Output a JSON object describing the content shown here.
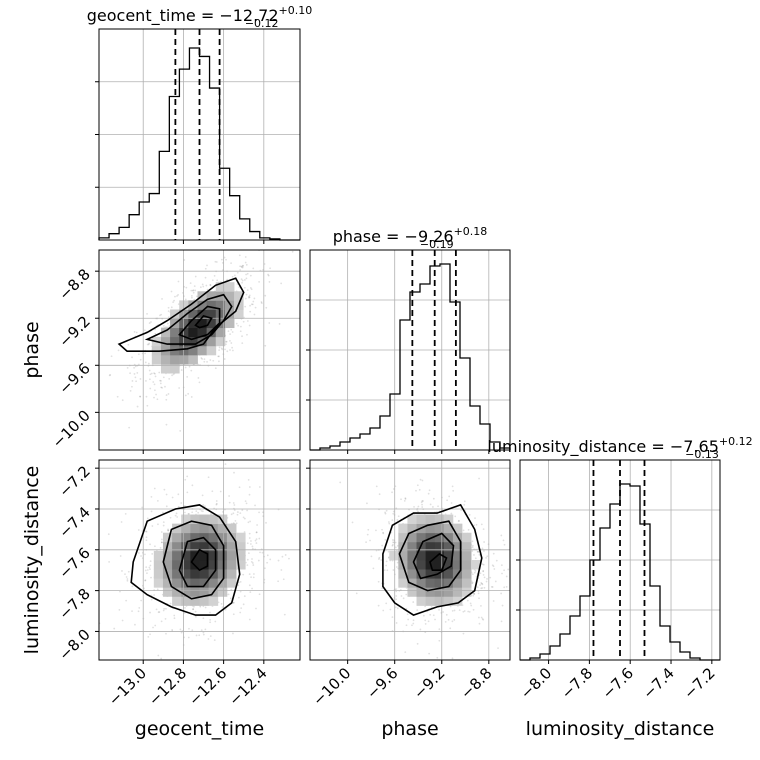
{
  "chart_data": {
    "type": "corner",
    "grid": true,
    "parameters": [
      {
        "name": "geocent_time",
        "ticks": [
          -13.0,
          -12.8,
          -12.6,
          -12.4
        ],
        "tick_labels": [
          "−13.0",
          "−12.8",
          "−12.6",
          "−12.4"
        ],
        "range": [
          -13.22,
          -12.22
        ],
        "title": {
          "main": "geocent_time = −12.72",
          "plus": "+0.10",
          "minus": "−0.12"
        },
        "quantiles": [
          -12.84,
          -12.72,
          -12.62
        ],
        "histogram": {
          "bin_edges": [
            -13.22,
            -13.17,
            -13.12,
            -13.07,
            -13.02,
            -12.97,
            -12.92,
            -12.87,
            -12.82,
            -12.77,
            -12.72,
            -12.67,
            -12.62,
            -12.57,
            -12.52,
            -12.47,
            -12.42,
            -12.37,
            -12.32,
            -12.27,
            -12.22
          ],
          "counts": [
            0.01,
            0.03,
            0.06,
            0.12,
            0.18,
            0.22,
            0.42,
            0.68,
            0.81,
            0.91,
            0.87,
            0.72,
            0.34,
            0.21,
            0.1,
            0.04,
            0.01,
            0.005,
            0,
            0
          ]
        }
      },
      {
        "name": "phase",
        "ticks": [
          -10.0,
          -9.6,
          -9.2,
          -8.8
        ],
        "tick_labels": [
          "−10.0",
          "−9.6",
          "−9.2",
          "−8.8"
        ],
        "range": [
          -10.32,
          -8.62
        ],
        "title": {
          "main": "phase = −9.26",
          "plus": "+0.18",
          "minus": "−0.19"
        },
        "quantiles": [
          -9.45,
          -9.26,
          -9.08
        ],
        "histogram": {
          "bin_edges": [
            -10.32,
            -10.235,
            -10.15,
            -10.065,
            -9.98,
            -9.895,
            -9.81,
            -9.725,
            -9.64,
            -9.555,
            -9.47,
            -9.385,
            -9.3,
            -9.215,
            -9.13,
            -9.045,
            -8.96,
            -8.875,
            -8.79,
            -8.705,
            -8.62
          ],
          "counts": [
            0,
            0.01,
            0.02,
            0.04,
            0.06,
            0.08,
            0.11,
            0.17,
            0.28,
            0.65,
            0.79,
            0.83,
            0.92,
            0.93,
            0.74,
            0.46,
            0.22,
            0.13,
            0.04,
            0.01
          ]
        }
      },
      {
        "name": "luminosity_distance",
        "ticks": [
          -8.0,
          -7.8,
          -7.6,
          -7.4,
          -7.2
        ],
        "tick_labels": [
          "−8.0",
          "−7.8",
          "−7.6",
          "−7.4",
          "−7.2"
        ],
        "range": [
          -8.14,
          -7.16
        ],
        "title": {
          "main": "luminosity_distance = −7.65",
          "plus": "+0.12",
          "minus": "−0.13"
        },
        "quantiles": [
          -7.78,
          -7.65,
          -7.53
        ],
        "histogram": {
          "bin_edges": [
            -8.14,
            -8.091,
            -8.042,
            -7.993,
            -7.944,
            -7.895,
            -7.846,
            -7.797,
            -7.748,
            -7.699,
            -7.65,
            -7.601,
            -7.552,
            -7.503,
            -7.454,
            -7.405,
            -7.356,
            -7.307,
            -7.258,
            -7.209,
            -7.16
          ],
          "counts": [
            0,
            0.01,
            0.03,
            0.07,
            0.13,
            0.22,
            0.32,
            0.5,
            0.66,
            0.78,
            0.88,
            0.87,
            0.68,
            0.37,
            0.17,
            0.09,
            0.04,
            0.01,
            0,
            0
          ]
        }
      }
    ],
    "pairs": [
      {
        "x": "geocent_time",
        "y": "phase",
        "mean": [
          -12.73,
          -9.28
        ],
        "sd": [
          0.12,
          0.2
        ],
        "corr": 0.62,
        "contours": [
          [
            [
              -13.12,
              -9.42
            ],
            [
              -12.98,
              -9.32
            ],
            [
              -12.88,
              -9.22
            ],
            [
              -12.76,
              -9.08
            ],
            [
              -12.64,
              -8.92
            ],
            [
              -12.54,
              -8.86
            ],
            [
              -12.5,
              -8.98
            ],
            [
              -12.54,
              -9.14
            ],
            [
              -12.64,
              -9.28
            ],
            [
              -12.7,
              -9.42
            ],
            [
              -12.78,
              -9.46
            ],
            [
              -12.92,
              -9.48
            ],
            [
              -13.08,
              -9.48
            ]
          ],
          [
            [
              -12.98,
              -9.38
            ],
            [
              -12.88,
              -9.3
            ],
            [
              -12.78,
              -9.16
            ],
            [
              -12.68,
              -9.04
            ],
            [
              -12.6,
              -9.0
            ],
            [
              -12.56,
              -9.1
            ],
            [
              -12.6,
              -9.22
            ],
            [
              -12.66,
              -9.34
            ],
            [
              -12.74,
              -9.42
            ],
            [
              -12.88,
              -9.42
            ]
          ],
          [
            [
              -12.82,
              -9.34
            ],
            [
              -12.76,
              -9.22
            ],
            [
              -12.68,
              -9.1
            ],
            [
              -12.62,
              -9.12
            ],
            [
              -12.62,
              -9.24
            ],
            [
              -12.68,
              -9.34
            ],
            [
              -12.76,
              -9.38
            ]
          ],
          [
            [
              -12.74,
              -9.26
            ],
            [
              -12.7,
              -9.18
            ],
            [
              -12.66,
              -9.2
            ],
            [
              -12.68,
              -9.26
            ],
            [
              -12.72,
              -9.28
            ]
          ]
        ]
      },
      {
        "x": "geocent_time",
        "y": "luminosity_distance",
        "mean": [
          -12.72,
          -7.65
        ],
        "sd": [
          0.12,
          0.125
        ],
        "corr": 0.15,
        "contours": [
          [
            [
              -13.05,
              -7.66
            ],
            [
              -12.98,
              -7.46
            ],
            [
              -12.84,
              -7.4
            ],
            [
              -12.72,
              -7.38
            ],
            [
              -12.62,
              -7.44
            ],
            [
              -12.54,
              -7.56
            ],
            [
              -12.52,
              -7.72
            ],
            [
              -12.56,
              -7.86
            ],
            [
              -12.64,
              -7.92
            ],
            [
              -12.74,
              -7.92
            ],
            [
              -12.86,
              -7.88
            ],
            [
              -12.98,
              -7.82
            ],
            [
              -13.06,
              -7.76
            ]
          ],
          [
            [
              -12.9,
              -7.66
            ],
            [
              -12.86,
              -7.5
            ],
            [
              -12.76,
              -7.46
            ],
            [
              -12.66,
              -7.48
            ],
            [
              -12.6,
              -7.58
            ],
            [
              -12.6,
              -7.74
            ],
            [
              -12.66,
              -7.82
            ],
            [
              -12.76,
              -7.84
            ],
            [
              -12.86,
              -7.78
            ]
          ],
          [
            [
              -12.82,
              -7.7
            ],
            [
              -12.78,
              -7.56
            ],
            [
              -12.7,
              -7.54
            ],
            [
              -12.64,
              -7.6
            ],
            [
              -12.64,
              -7.7
            ],
            [
              -12.7,
              -7.78
            ],
            [
              -12.78,
              -7.78
            ]
          ],
          [
            [
              -12.76,
              -7.66
            ],
            [
              -12.72,
              -7.6
            ],
            [
              -12.68,
              -7.62
            ],
            [
              -12.68,
              -7.68
            ],
            [
              -12.72,
              -7.7
            ]
          ]
        ]
      },
      {
        "x": "phase",
        "y": "luminosity_distance",
        "mean": [
          -9.26,
          -7.65
        ],
        "sd": [
          0.19,
          0.125
        ],
        "corr": -0.1,
        "contours": [
          [
            [
              -9.7,
              -7.62
            ],
            [
              -9.62,
              -7.48
            ],
            [
              -9.44,
              -7.42
            ],
            [
              -9.24,
              -7.42
            ],
            [
              -9.04,
              -7.38
            ],
            [
              -8.92,
              -7.5
            ],
            [
              -8.86,
              -7.64
            ],
            [
              -8.92,
              -7.8
            ],
            [
              -9.06,
              -7.86
            ],
            [
              -9.24,
              -7.88
            ],
            [
              -9.44,
              -7.92
            ],
            [
              -9.6,
              -7.86
            ],
            [
              -9.7,
              -7.78
            ]
          ],
          [
            [
              -9.56,
              -7.62
            ],
            [
              -9.48,
              -7.52
            ],
            [
              -9.32,
              -7.48
            ],
            [
              -9.14,
              -7.46
            ],
            [
              -9.04,
              -7.56
            ],
            [
              -9.04,
              -7.7
            ],
            [
              -9.14,
              -7.78
            ],
            [
              -9.32,
              -7.8
            ],
            [
              -9.48,
              -7.76
            ]
          ],
          [
            [
              -9.44,
              -7.66
            ],
            [
              -9.36,
              -7.56
            ],
            [
              -9.2,
              -7.52
            ],
            [
              -9.1,
              -7.58
            ],
            [
              -9.12,
              -7.68
            ],
            [
              -9.24,
              -7.72
            ],
            [
              -9.38,
              -7.74
            ]
          ],
          [
            [
              -9.3,
              -7.66
            ],
            [
              -9.22,
              -7.62
            ],
            [
              -9.16,
              -7.64
            ],
            [
              -9.2,
              -7.7
            ],
            [
              -9.28,
              -7.7
            ]
          ]
        ]
      }
    ]
  }
}
